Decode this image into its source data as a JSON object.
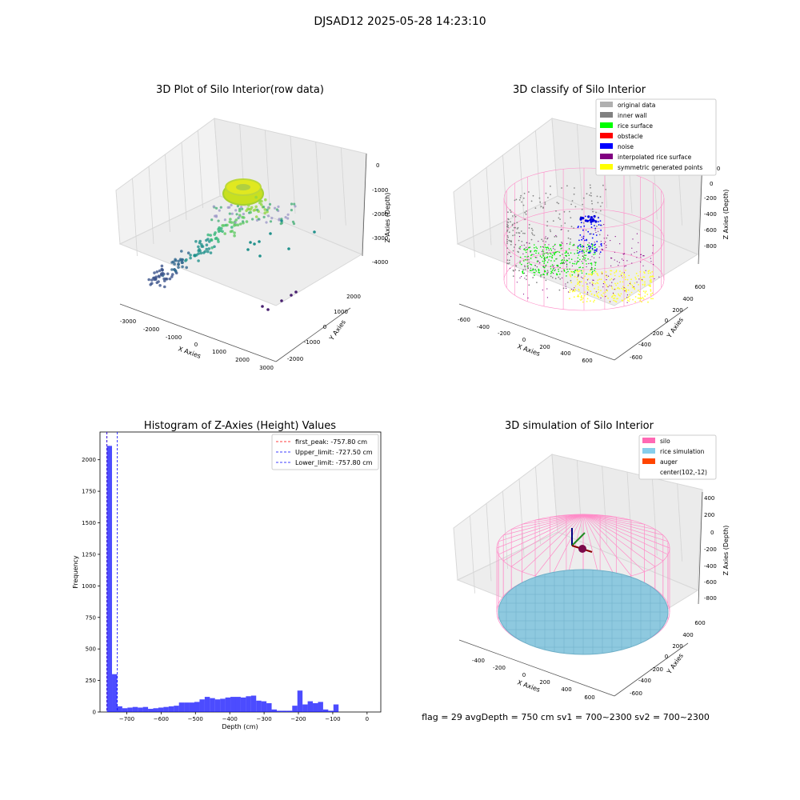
{
  "suptitle": "DJSAD12 2025-05-28 14:23:10",
  "status_line": "flag = 29  avgDepth = 750 cm  sv1 = 700~2300  sv2 = 700~2300",
  "chart_data": [
    {
      "type": "scatter",
      "title": "3D Plot of Silo Interior(row data)",
      "xlabel": "X Axies",
      "ylabel": "Y Axies",
      "zlabel": "Z Axies (Depth)",
      "xticks": [
        "-3000",
        "-2000",
        "-1000",
        "0",
        "1000",
        "2000",
        "3000"
      ],
      "yticks": [
        "-2000",
        "-1000",
        "0",
        "1000",
        "2000"
      ],
      "zticks": [
        "0",
        "-1000",
        "-2000",
        "-3000",
        "-4000"
      ],
      "grid": true,
      "colormap": "viridis"
    },
    {
      "type": "scatter",
      "title": "3D classify of Silo Interior",
      "xlabel": "X Axies",
      "ylabel": "Y Axies",
      "zlabel": "Z Axies (Depth)",
      "xticks": [
        "-600",
        "-400",
        "-200",
        "0",
        "200",
        "400",
        "600"
      ],
      "yticks": [
        "-600",
        "-400",
        "-200",
        "0",
        "200",
        "400",
        "600"
      ],
      "zticks": [
        "200",
        "0",
        "-200",
        "-400",
        "-600",
        "-800"
      ],
      "grid": true,
      "legend_placement": "top-right",
      "legend": [
        {
          "label": "original data",
          "color": "#b0b0b0"
        },
        {
          "label": "inner wall",
          "color": "#808080"
        },
        {
          "label": "rice surface",
          "color": "#00ff00"
        },
        {
          "label": "obstacle",
          "color": "#ff0000"
        },
        {
          "label": "noise",
          "color": "#0000ff"
        },
        {
          "label": "interpolated rice surface",
          "color": "#800080"
        },
        {
          "label": "symmetric generated points",
          "color": "#ffff00"
        }
      ]
    },
    {
      "type": "bar",
      "title": "Histogram of Z-Axies (Height) Values",
      "xlabel": "Depth (cm)",
      "ylabel": "Frequency",
      "xlim": [
        -778,
        40
      ],
      "ylim": [
        0,
        2220
      ],
      "xticks": [
        -700,
        -600,
        -500,
        -400,
        -300,
        -200,
        -100,
        0
      ],
      "yticks": [
        0,
        250,
        500,
        750,
        1000,
        1250,
        1500,
        1750,
        2000
      ],
      "bar_color": "#0000ff",
      "bin_start": -758,
      "bin_width": 15,
      "values": [
        2110,
        300,
        45,
        30,
        35,
        40,
        35,
        40,
        25,
        30,
        35,
        40,
        45,
        50,
        75,
        75,
        75,
        80,
        100,
        120,
        110,
        100,
        105,
        115,
        120,
        120,
        115,
        125,
        130,
        90,
        85,
        70,
        20,
        10,
        10,
        10,
        50,
        170,
        60,
        85,
        70,
        80,
        20,
        10,
        60
      ],
      "reference_lines": [
        {
          "label": "first_peak: -757.80 cm",
          "x": -757.8,
          "color": "#ff0000"
        },
        {
          "label": "Upper_limit: -727.50 cm",
          "x": -727.5,
          "color": "#0000ff"
        },
        {
          "label": "Lower_limit: -757.80 cm",
          "x": -757.8,
          "color": "#0000ff"
        }
      ],
      "legend_placement": "top-right",
      "grid": false
    },
    {
      "type": "scatter",
      "title": "3D simulation of Silo Interior",
      "xlabel": "X Axies",
      "ylabel": "Y Axies",
      "zlabel": "Z Axies (Depth)",
      "xticks": [
        "-400",
        "-200",
        "0",
        "200",
        "400",
        "600"
      ],
      "yticks": [
        "-600",
        "-400",
        "-200",
        "0",
        "200",
        "400",
        "600"
      ],
      "zticks": [
        "400",
        "200",
        "0",
        "-200",
        "-400",
        "-600",
        "-800"
      ],
      "grid": true,
      "legend_placement": "top-right",
      "legend": [
        {
          "label": "silo",
          "color": "#ff69b4"
        },
        {
          "label": "rice simulation",
          "color": "#87ceeb"
        },
        {
          "label": "auger",
          "color": "#ff4500"
        },
        {
          "label": "center(102,-12)",
          "color": "none"
        }
      ]
    }
  ]
}
